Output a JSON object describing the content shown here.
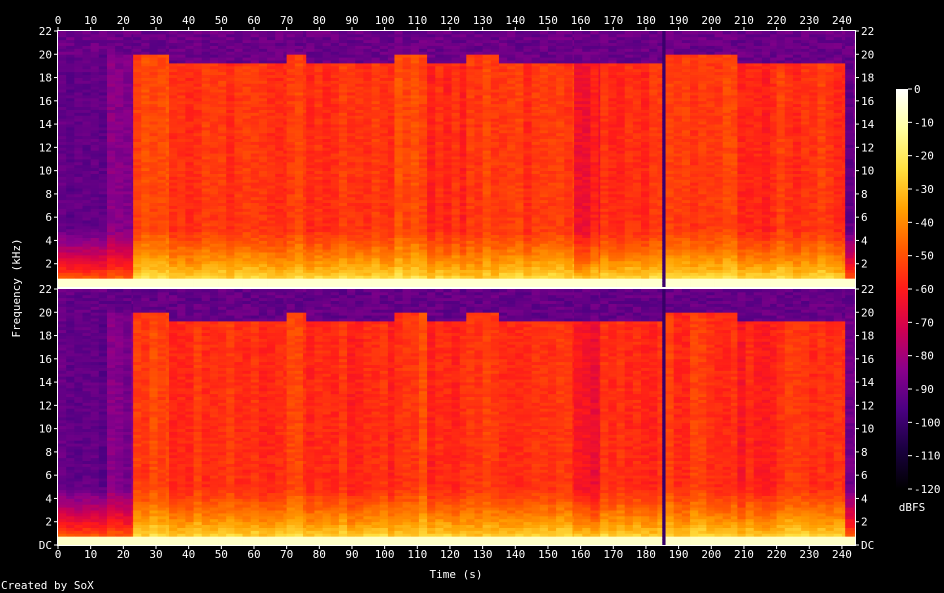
{
  "chart_data": {
    "type": "heatmap",
    "xlabel": "Time (s)",
    "ylabel": "Frequency (kHz)",
    "xlim": [
      0,
      244
    ],
    "ylim": [
      0,
      22
    ],
    "x_ticks": [
      0,
      10,
      20,
      30,
      40,
      50,
      60,
      70,
      80,
      90,
      100,
      110,
      120,
      130,
      140,
      150,
      160,
      170,
      180,
      190,
      200,
      210,
      220,
      230,
      240
    ],
    "y_ticks": [
      {
        "value": 0,
        "label": "DC"
      },
      {
        "value": 2,
        "label": "2"
      },
      {
        "value": 4,
        "label": "4"
      },
      {
        "value": 6,
        "label": "6"
      },
      {
        "value": 8,
        "label": "8"
      },
      {
        "value": 10,
        "label": "10"
      },
      {
        "value": 12,
        "label": "12"
      },
      {
        "value": 14,
        "label": "14"
      },
      {
        "value": 16,
        "label": "16"
      },
      {
        "value": 18,
        "label": "18"
      },
      {
        "value": 20,
        "label": "20"
      },
      {
        "value": 22,
        "label": "22"
      }
    ],
    "channels": 2,
    "colorbar": {
      "label": "dBFS",
      "range": [
        -120,
        0
      ],
      "ticks": [
        0,
        -10,
        -20,
        -30,
        -40,
        -50,
        -60,
        -70,
        -80,
        -90,
        -100,
        -110,
        -120
      ],
      "colors": [
        "#000000",
        "#1a0040",
        "#4b0082",
        "#8b008b",
        "#d00050",
        "#ff1a1a",
        "#ff5a00",
        "#ffa000",
        "#ffe040",
        "#ffffa0",
        "#ffffff"
      ]
    },
    "segments": [
      {
        "start": 0,
        "end": 15,
        "cutoff_khz": 19.8,
        "body_db": -92,
        "low_db": -30
      },
      {
        "start": 15,
        "end": 23,
        "cutoff_khz": 19.8,
        "body_db": -85,
        "low_db": -30
      },
      {
        "start": 23,
        "end": 34,
        "cutoff_khz": 19.8,
        "body_db": -52,
        "low_db": -12
      },
      {
        "start": 34,
        "end": 70,
        "cutoff_khz": 19.2,
        "body_db": -55,
        "low_db": -12
      },
      {
        "start": 70,
        "end": 76,
        "cutoff_khz": 19.8,
        "body_db": -52,
        "low_db": -12
      },
      {
        "start": 76,
        "end": 103,
        "cutoff_khz": 19.2,
        "body_db": -56,
        "low_db": -12
      },
      {
        "start": 103,
        "end": 113,
        "cutoff_khz": 19.8,
        "body_db": -52,
        "low_db": -12
      },
      {
        "start": 113,
        "end": 125,
        "cutoff_khz": 19.2,
        "body_db": -57,
        "low_db": -12
      },
      {
        "start": 125,
        "end": 135,
        "cutoff_khz": 19.8,
        "body_db": -54,
        "low_db": -18
      },
      {
        "start": 135,
        "end": 158,
        "cutoff_khz": 19.2,
        "body_db": -55,
        "low_db": -12
      },
      {
        "start": 158,
        "end": 166,
        "cutoff_khz": 19.2,
        "body_db": -62,
        "low_db": -14
      },
      {
        "start": 166,
        "end": 185,
        "cutoff_khz": 19.2,
        "body_db": -56,
        "low_db": -12
      },
      {
        "start": 185,
        "end": 186,
        "cutoff_khz": 0,
        "body_db": -100,
        "low_db": -100
      },
      {
        "start": 186,
        "end": 208,
        "cutoff_khz": 19.8,
        "body_db": -54,
        "low_db": -12
      },
      {
        "start": 208,
        "end": 220,
        "cutoff_khz": 19.2,
        "body_db": -58,
        "low_db": -12
      },
      {
        "start": 220,
        "end": 241,
        "cutoff_khz": 19.2,
        "body_db": -55,
        "low_db": -12
      },
      {
        "start": 241,
        "end": 244,
        "cutoff_khz": 19.8,
        "body_db": -90,
        "low_db": -30
      }
    ]
  },
  "credit": "Created by SoX"
}
